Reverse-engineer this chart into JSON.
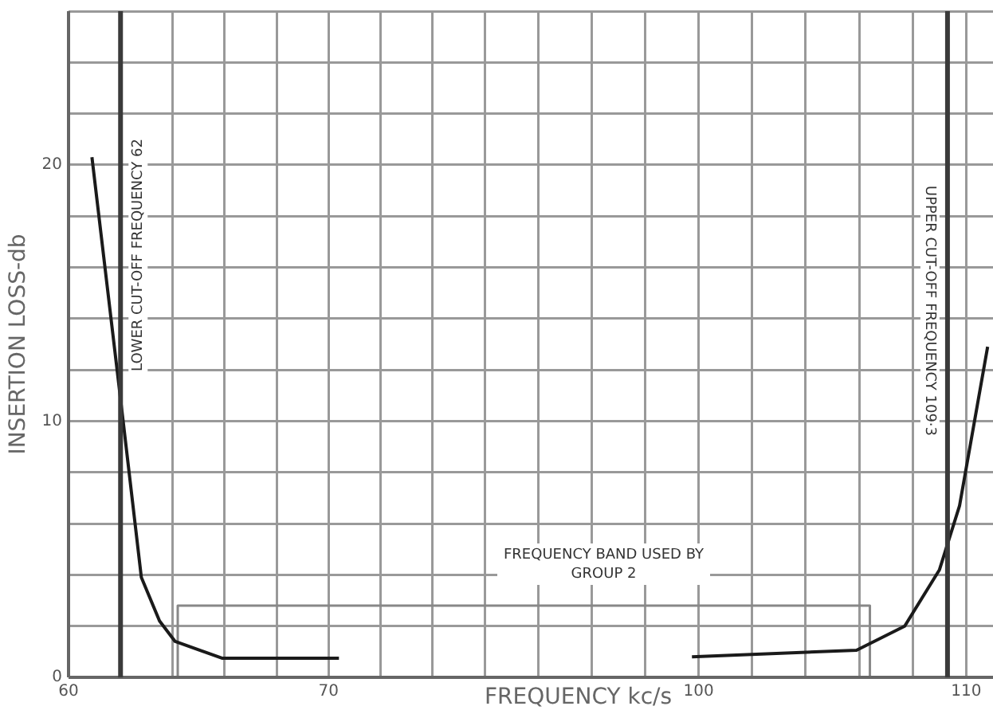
{
  "chart_data": [
    {
      "type": "line",
      "ylabel": "INSERTION LOSS-db",
      "xlim": [
        60,
        76
      ],
      "ylim": [
        0,
        26
      ],
      "xticks": [
        60,
        {
          "value": 62,
          "label": null
        },
        {
          "value": 64,
          "label": null
        },
        {
          "value": 66,
          "label": null
        },
        {
          "value": 68,
          "label": null
        },
        70,
        {
          "value": 72,
          "label": null
        },
        {
          "value": 74,
          "label": null
        },
        {
          "value": 76,
          "label": null
        }
      ],
      "yticks": [
        0,
        {
          "value": 2,
          "label": null
        },
        {
          "value": 4,
          "label": null
        },
        {
          "value": 6,
          "label": null
        },
        {
          "value": 8,
          "label": null
        },
        10,
        {
          "value": 12,
          "label": null
        },
        {
          "value": 14,
          "label": null
        },
        {
          "value": 16,
          "label": null
        },
        {
          "value": 18,
          "label": null
        },
        20,
        {
          "value": 22,
          "label": null
        },
        {
          "value": 24,
          "label": null
        },
        {
          "value": 26,
          "label": null
        }
      ],
      "grid": true,
      "series": [
        {
          "color": "#1a1a1a",
          "x": [
            60.9,
            62.1,
            62.8,
            63.5,
            64.1,
            65.9,
            70.4
          ],
          "values": [
            20.3,
            10,
            3.9,
            2.2,
            1.4,
            0.75,
            0.75
          ]
        },
        {
          "color": "#888888",
          "x": [
            64.2,
            64.2,
            76
          ],
          "values": [
            0,
            2.8,
            2.8
          ]
        }
      ],
      "ref_lines": [
        {
          "axis": "x",
          "value": 62,
          "label": "LOWER CUT-OFF FREQUENCY 62",
          "color": "#3a3a3a"
        }
      ]
    },
    {
      "type": "line",
      "xlabel": "FREQUENCY kc/s",
      "xlim": [
        92,
        111
      ],
      "ylim": [
        0,
        26
      ],
      "tick_labels": "x",
      "xticks": [
        {
          "value": 92,
          "label": null
        },
        {
          "value": 94,
          "label": null
        },
        {
          "value": 96,
          "label": null
        },
        {
          "value": 98,
          "label": null
        },
        100,
        {
          "value": 102,
          "label": null
        },
        {
          "value": 104,
          "label": null
        },
        {
          "value": 106,
          "label": null
        },
        {
          "value": 108,
          "label": null
        },
        110
      ],
      "yticks": [
        0,
        {
          "value": 2,
          "label": null
        },
        {
          "value": 4,
          "label": null
        },
        {
          "value": 6,
          "label": null
        },
        {
          "value": 8,
          "label": null
        },
        {
          "value": 10,
          "label": null
        },
        {
          "value": 12,
          "label": null
        },
        {
          "value": 14,
          "label": null
        },
        {
          "value": 16,
          "label": null
        },
        {
          "value": 18,
          "label": null
        },
        {
          "value": 20,
          "label": null
        },
        {
          "value": 22,
          "label": null
        },
        {
          "value": 24,
          "label": null
        },
        {
          "value": 26,
          "label": null
        }
      ],
      "grid": true,
      "series": [
        {
          "color": "#1a1a1a",
          "x": [
            99.75,
            105.9,
            107.7,
            109,
            109.75,
            110.8
          ],
          "values": [
            0.8,
            1.06,
            2,
            4.2,
            6.7,
            12.9
          ]
        },
        {
          "color": "#888888",
          "x": [
            92,
            106.4,
            106.4
          ],
          "values": [
            2.8,
            2.8,
            0
          ]
        }
      ],
      "ref_lines": [
        {
          "axis": "x",
          "value": 109.3,
          "label": "UPPER CUT-OFF FREQUENCY 109·3",
          "color": "#3a3a3a"
        }
      ],
      "annotations": [
        "FREQUENCY BAND USED BY GROUP 2"
      ]
    }
  ]
}
